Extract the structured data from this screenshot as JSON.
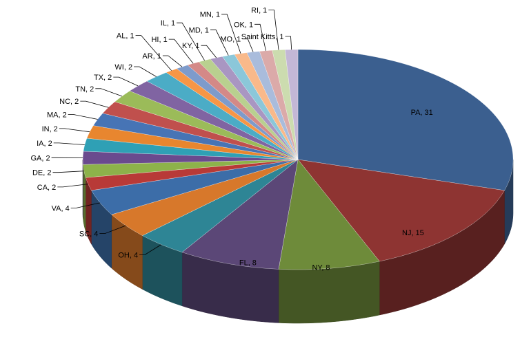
{
  "chart_data": {
    "type": "pie",
    "style": "3d",
    "legend": "none",
    "slices": [
      {
        "label": "PA",
        "value": 31,
        "color": "#3B5F8F"
      },
      {
        "label": "NJ",
        "value": 15,
        "color": "#8E3432"
      },
      {
        "label": "NY",
        "value": 8,
        "color": "#6E8B3A"
      },
      {
        "label": "FL",
        "value": 8,
        "color": "#5B4777"
      },
      {
        "label": "OH",
        "value": 4,
        "color": "#2E8595"
      },
      {
        "label": "SC",
        "value": 4,
        "color": "#D7782B"
      },
      {
        "label": "VA",
        "value": 4,
        "color": "#3C6DA8"
      },
      {
        "label": "CA",
        "value": 2,
        "color": "#B83A37"
      },
      {
        "label": "DE",
        "value": 2,
        "color": "#8DB24A"
      },
      {
        "label": "GA",
        "value": 2,
        "color": "#6A4A8E"
      },
      {
        "label": "IA",
        "value": 2,
        "color": "#2FA0B5"
      },
      {
        "label": "IN",
        "value": 2,
        "color": "#E8862F"
      },
      {
        "label": "MA",
        "value": 2,
        "color": "#4774B5"
      },
      {
        "label": "NC",
        "value": 2,
        "color": "#C0504D"
      },
      {
        "label": "TN",
        "value": 2,
        "color": "#9BBB59"
      },
      {
        "label": "TX",
        "value": 2,
        "color": "#8064A2"
      },
      {
        "label": "WI",
        "value": 2,
        "color": "#4BACC6"
      },
      {
        "label": "AL",
        "value": 1,
        "color": "#F79646"
      },
      {
        "label": "AR",
        "value": 1,
        "color": "#7E9BCB"
      },
      {
        "label": "HI",
        "value": 1,
        "color": "#D48987"
      },
      {
        "label": "IL",
        "value": 1,
        "color": "#B9D08F"
      },
      {
        "label": "KY",
        "value": 1,
        "color": "#A996C2"
      },
      {
        "label": "MD",
        "value": 1,
        "color": "#8BC7D9"
      },
      {
        "label": "MN",
        "value": 1,
        "color": "#F9B98A"
      },
      {
        "label": "MO",
        "value": 1,
        "color": "#A9BCDC"
      },
      {
        "label": "OK",
        "value": 1,
        "color": "#DBAAA9"
      },
      {
        "label": "RI",
        "value": 1,
        "color": "#CCDCAF"
      },
      {
        "label": "Saint Kitts",
        "value": 1,
        "color": "#C3B7D6"
      }
    ]
  }
}
